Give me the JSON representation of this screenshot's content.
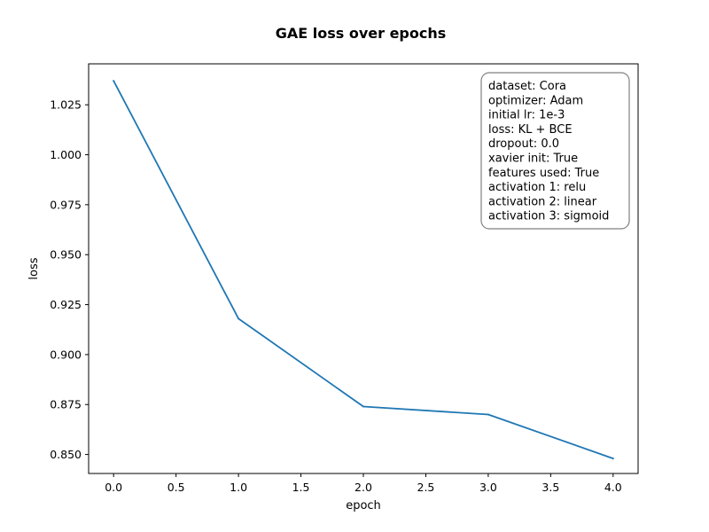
{
  "chart_data": {
    "type": "line",
    "title": "GAE loss over epochs",
    "xlabel": "epoch",
    "ylabel": "loss",
    "xlim": [
      -0.2,
      4.2
    ],
    "ylim": [
      0.8405,
      1.0455
    ],
    "x_ticks": [
      0.0,
      0.5,
      1.0,
      1.5,
      2.0,
      2.5,
      3.0,
      3.5,
      4.0
    ],
    "x_tick_labels": [
      "0.0",
      "0.5",
      "1.0",
      "1.5",
      "2.0",
      "2.5",
      "3.0",
      "3.5",
      "4.0"
    ],
    "y_ticks": [
      0.85,
      0.875,
      0.9,
      0.925,
      0.95,
      0.975,
      1.0,
      1.025
    ],
    "y_tick_labels": [
      "0.850",
      "0.875",
      "0.900",
      "0.925",
      "0.950",
      "0.975",
      "1.000",
      "1.025"
    ],
    "grid": false,
    "series": [
      {
        "color": "#1f77b4",
        "x": [
          0,
          1,
          2,
          3,
          4
        ],
        "y": [
          1.037,
          0.918,
          0.874,
          0.87,
          0.848
        ]
      }
    ],
    "annotation": {
      "placement": "top-right",
      "lines": [
        "dataset: Cora",
        "optimizer: Adam",
        "initial lr: 1e-3",
        "loss: KL + BCE",
        "dropout: 0.0",
        "xavier init: True",
        "features used: True",
        "activation 1: relu",
        "activation 2: linear",
        "activation 3: sigmoid"
      ]
    }
  }
}
